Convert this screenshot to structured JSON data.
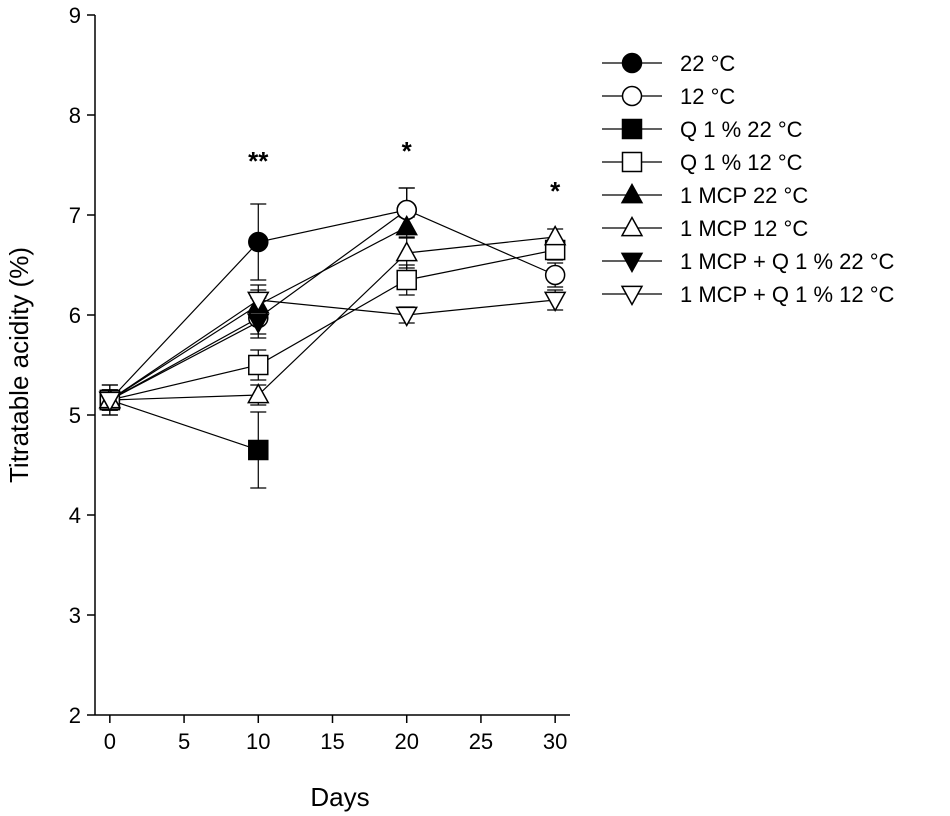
{
  "chart_data": {
    "type": "line",
    "title": "",
    "xlabel": "Days",
    "ylabel": "Titratable acidity (%)",
    "xlim": [
      -1,
      31
    ],
    "ylim": [
      2,
      9
    ],
    "x_ticks": [
      0,
      5,
      10,
      15,
      20,
      25,
      30
    ],
    "y_ticks": [
      2,
      3,
      4,
      5,
      6,
      7,
      8,
      9
    ],
    "grid": false,
    "legend_position": "right",
    "significance": [
      {
        "x": 10,
        "label": "**"
      },
      {
        "x": 20,
        "label": "*"
      },
      {
        "x": 30,
        "label": "*"
      }
    ],
    "series": [
      {
        "name": "22 °C",
        "marker": "circle",
        "filled": true,
        "x": [
          0,
          10,
          20
        ],
        "y": [
          5.15,
          6.73,
          7.05
        ],
        "err": [
          0.15,
          0.38,
          0.22
        ]
      },
      {
        "name": "12 °C",
        "marker": "circle",
        "filled": false,
        "x": [
          0,
          10,
          20,
          30
        ],
        "y": [
          5.15,
          5.97,
          7.05,
          6.4
        ],
        "err": [
          0.15,
          0.2,
          0.22,
          0.12
        ]
      },
      {
        "name": "Q 1 % 22 °C",
        "marker": "square",
        "filled": true,
        "x": [
          0,
          10
        ],
        "y": [
          5.15,
          4.65
        ],
        "err": [
          0.1,
          0.38
        ]
      },
      {
        "name": "Q 1 % 12 °C",
        "marker": "square",
        "filled": false,
        "x": [
          0,
          10,
          20,
          30
        ],
        "y": [
          5.15,
          5.5,
          6.35,
          6.65
        ],
        "err": [
          0.1,
          0.15,
          0.15,
          0.1
        ]
      },
      {
        "name": "1 MCP 22 °C",
        "marker": "triangle-up",
        "filled": true,
        "x": [
          0,
          10,
          20
        ],
        "y": [
          5.15,
          6.1,
          6.88
        ],
        "err": [
          0.1,
          0.15,
          0.1
        ]
      },
      {
        "name": "1 MCP 12 °C",
        "marker": "triangle-up",
        "filled": false,
        "x": [
          0,
          10,
          20,
          30
        ],
        "y": [
          5.15,
          5.2,
          6.62,
          6.78
        ],
        "err": [
          0.1,
          0.1,
          0.15,
          0.08
        ]
      },
      {
        "name": "1 MCP + Q 1 % 22 °C",
        "marker": "triangle-down",
        "filled": true,
        "x": [
          0,
          10
        ],
        "y": [
          5.15,
          5.93
        ],
        "err": [
          0.1,
          0.12
        ]
      },
      {
        "name": "1 MCP + Q 1 % 12 °C",
        "marker": "triangle-down",
        "filled": false,
        "x": [
          0,
          10,
          20,
          30
        ],
        "y": [
          5.15,
          6.15,
          6.0,
          6.15
        ],
        "err": [
          0.1,
          0.15,
          0.08,
          0.1
        ]
      }
    ]
  }
}
